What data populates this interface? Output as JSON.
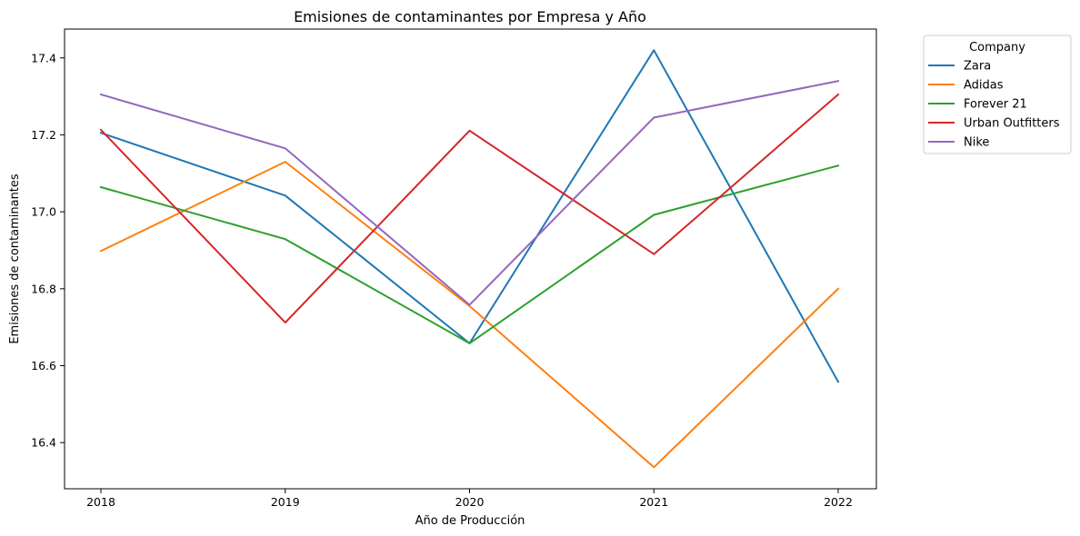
{
  "chart_data": {
    "type": "line",
    "title": "Emisiones de contaminantes por Empresa y Año",
    "xlabel": "Año de Producción",
    "ylabel": "Emisiones de contaminantes",
    "x": [
      "2018",
      "2019",
      "2020",
      "2021",
      "2022"
    ],
    "ylim": [
      16.28,
      17.475
    ],
    "yticks": [
      "16.4",
      "16.6",
      "16.8",
      "17.0",
      "17.2",
      "17.4"
    ],
    "grid": false,
    "legend": {
      "title": "Company",
      "placement": "outside-top-right"
    },
    "series": [
      {
        "name": "Zara",
        "color": "#1f77b4",
        "values": [
          17.205,
          17.042,
          16.658,
          17.42,
          16.558
        ]
      },
      {
        "name": "Adidas",
        "color": "#ff7f0e",
        "values": [
          16.898,
          17.13,
          16.755,
          16.336,
          16.8
        ]
      },
      {
        "name": "Forever 21",
        "color": "#2ca02c",
        "values": [
          17.064,
          16.929,
          16.658,
          16.992,
          17.12
        ]
      },
      {
        "name": "Urban Outfitters",
        "color": "#d62728",
        "values": [
          17.213,
          16.712,
          17.211,
          16.89,
          17.305
        ]
      },
      {
        "name": "Nike",
        "color": "#9467bd",
        "values": [
          17.305,
          17.165,
          16.758,
          17.245,
          17.34
        ]
      }
    ]
  }
}
